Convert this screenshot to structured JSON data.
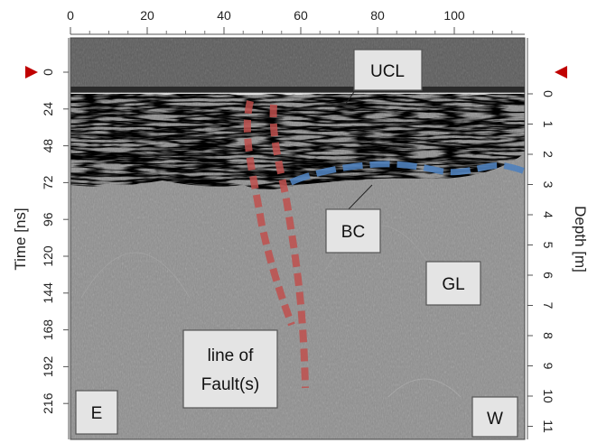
{
  "figure": {
    "type": "gpr-radargram",
    "top_axis": {
      "ticks": [
        "0",
        "20",
        "40",
        "60",
        "80",
        "100"
      ]
    },
    "left_axis": {
      "title": "Time [ns]",
      "ticks": [
        "0",
        "24",
        "48",
        "72",
        "96",
        "120",
        "144",
        "168",
        "192",
        "216"
      ]
    },
    "right_axis": {
      "title": "Depth [m]",
      "ticks": [
        "0",
        "1",
        "2",
        "3",
        "4",
        "5",
        "6",
        "7",
        "8",
        "9",
        "10",
        "11"
      ]
    },
    "labels": {
      "ucl": "UCL",
      "bc": "BC",
      "gl": "GL",
      "fault_line1": "line of",
      "fault_line2": "Fault(s)",
      "east": "E",
      "west": "W"
    },
    "colors": {
      "fault_line": "#c0504d",
      "bc_line": "#4f81bd",
      "marker": "#c00000"
    }
  }
}
